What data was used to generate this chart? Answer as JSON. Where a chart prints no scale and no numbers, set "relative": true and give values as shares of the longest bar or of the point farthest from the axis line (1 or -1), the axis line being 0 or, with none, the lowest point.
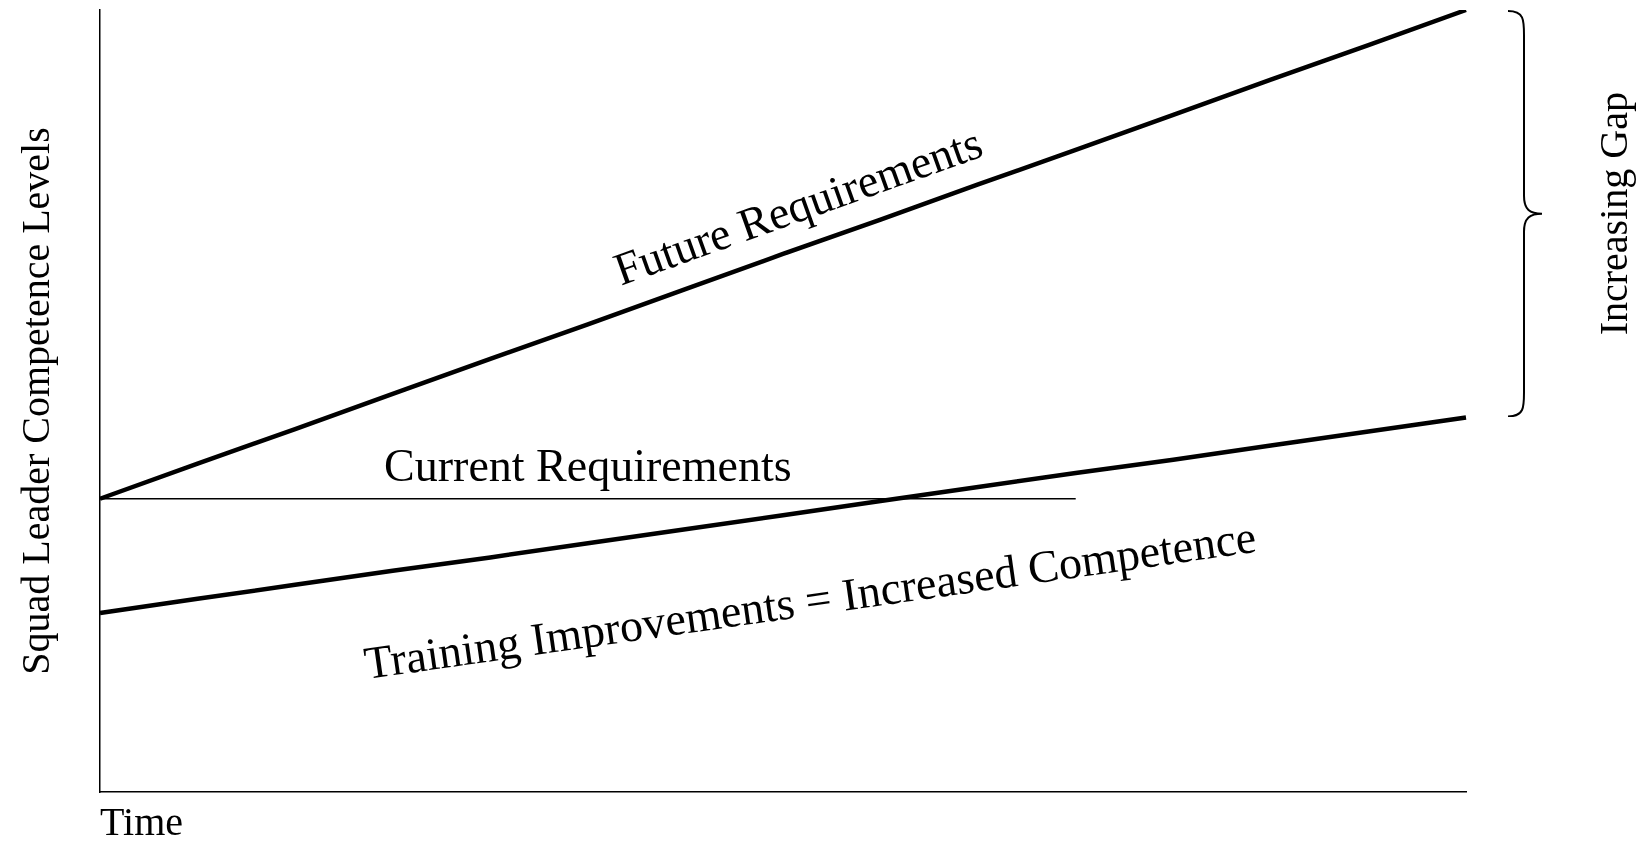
{
  "chart_data": {
    "type": "line",
    "relative": true,
    "xlabel": "Time",
    "ylabel": "Squad Leader Competence Levels",
    "categories": [
      null,
      null,
      null,
      null,
      null,
      null,
      null,
      null,
      null,
      null,
      null,
      null,
      null,
      null,
      null
    ],
    "series": [
      {
        "name": "Future Requirements",
        "color": "#000000",
        "values": [
          0.375,
          0.42,
          0.464,
          0.509,
          0.554,
          0.598,
          0.643,
          0.688,
          0.732,
          0.777,
          0.821,
          0.866,
          0.911,
          0.955,
          1.0
        ]
      },
      {
        "name": "Current Requirements",
        "color": "#000000",
        "values": [
          0.375,
          0.375,
          0.375,
          0.375,
          0.375,
          0.375,
          0.375,
          0.375,
          0.375,
          0.375,
          0.375,
          null,
          null,
          null,
          null
        ]
      },
      {
        "name": "Training Improvements = Increased Competence",
        "color": "#000000",
        "values": [
          0.229,
          0.247,
          0.265,
          0.283,
          0.3,
          0.318,
          0.336,
          0.354,
          0.372,
          0.39,
          0.408,
          0.425,
          0.443,
          0.461,
          0.479
        ]
      }
    ],
    "annotations": [
      "Increasing Gap"
    ],
    "legend": false,
    "grid": false,
    "marker": "none",
    "line_style": "solid"
  }
}
